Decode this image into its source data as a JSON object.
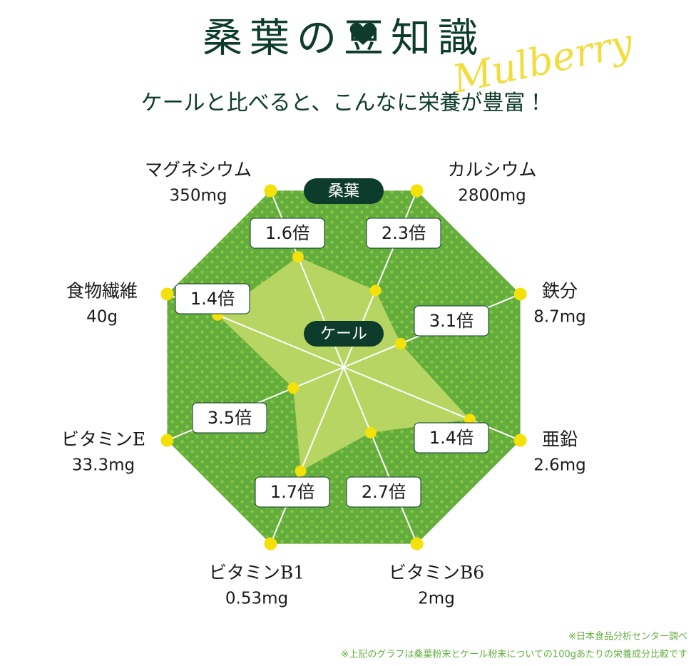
{
  "header": {
    "title": "桑葉の豆知識",
    "script": "Mulberry",
    "subtitle": "ケールと比べると、こんなに栄養が豊富！"
  },
  "chart_data": {
    "type": "radar",
    "categories": [
      "マグネシウム",
      "カルシウム",
      "鉄分",
      "亜鉛",
      "ビタミンB6",
      "ビタミンB1",
      "ビタミンE",
      "食物繊維"
    ],
    "amounts": [
      "350mg",
      "2800mg",
      "8.7mg",
      "2.6mg",
      "2mg",
      "0.53mg",
      "33.3mg",
      "40g"
    ],
    "series": [
      {
        "name": "桑葉",
        "color": "#62ad3e"
      },
      {
        "name": "ケール",
        "color": "#b6d563",
        "values": [
          1.6,
          2.3,
          3.1,
          1.4,
          2.7,
          1.7,
          3.5,
          1.4
        ],
        "value_labels": [
          "1.6倍",
          "2.3倍",
          "3.1倍",
          "1.4倍",
          "2.7倍",
          "1.7倍",
          "3.5倍",
          "1.4倍"
        ]
      }
    ]
  },
  "notes": [
    "※日本食品分析センター調べ",
    "※上記のグラフは桑葉粉末とケール粉末についての100gあたりの栄養成分比較です"
  ]
}
